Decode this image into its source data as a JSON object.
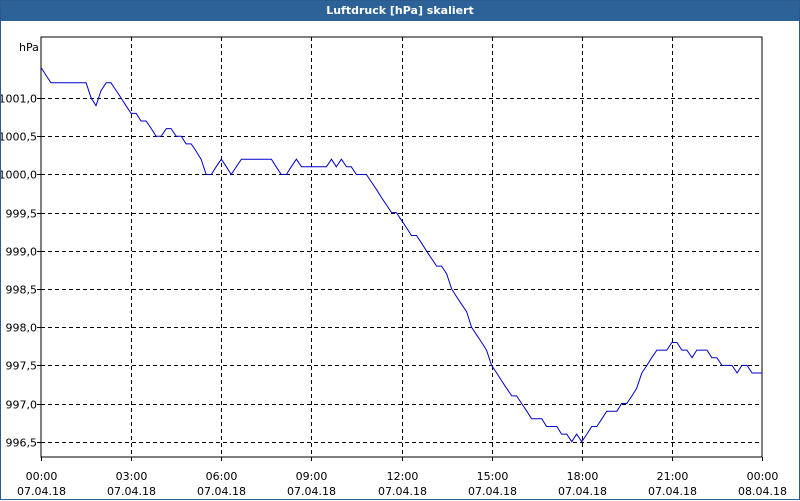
{
  "title": "Luftdruck [hPa] skaliert",
  "chart_data": {
    "type": "line",
    "ylabel": "hPa",
    "ylim": [
      996.3,
      1001.8
    ],
    "xlim_hours": [
      0,
      24
    ],
    "grid": true,
    "line_color": "#0000cc",
    "y_ticks": [
      {
        "value": 1001.0,
        "label": "1001,0"
      },
      {
        "value": 1000.5,
        "label": "1000,5"
      },
      {
        "value": 1000.0,
        "label": "1000,0"
      },
      {
        "value": 999.5,
        "label": "999,5"
      },
      {
        "value": 999.0,
        "label": "999,0"
      },
      {
        "value": 998.5,
        "label": "998,5"
      },
      {
        "value": 998.0,
        "label": "998,0"
      },
      {
        "value": 997.5,
        "label": "997,5"
      },
      {
        "value": 997.0,
        "label": "997,0"
      },
      {
        "value": 996.5,
        "label": "996,5"
      }
    ],
    "x_ticks": [
      {
        "hour": 0,
        "time": "00:00",
        "date": "07.04.18"
      },
      {
        "hour": 3,
        "time": "03:00",
        "date": "07.04.18"
      },
      {
        "hour": 6,
        "time": "06:00",
        "date": "07.04.18"
      },
      {
        "hour": 9,
        "time": "09:00",
        "date": "07.04.18"
      },
      {
        "hour": 12,
        "time": "12:00",
        "date": "07.04.18"
      },
      {
        "hour": 15,
        "time": "15:00",
        "date": "07.04.18"
      },
      {
        "hour": 18,
        "time": "18:00",
        "date": "07.04.18"
      },
      {
        "hour": 21,
        "time": "21:00",
        "date": "07.04.18"
      },
      {
        "hour": 24,
        "time": "00:00",
        "date": "08.04.18"
      }
    ],
    "series": [
      {
        "points": [
          [
            0.0,
            1001.4
          ],
          [
            0.33,
            1001.2
          ],
          [
            1.0,
            1001.2
          ],
          [
            1.5,
            1001.2
          ],
          [
            1.67,
            1001.0
          ],
          [
            1.83,
            1000.9
          ],
          [
            2.0,
            1001.1
          ],
          [
            2.17,
            1001.2
          ],
          [
            2.33,
            1001.2
          ],
          [
            2.5,
            1001.1
          ],
          [
            2.67,
            1001.0
          ],
          [
            2.83,
            1000.9
          ],
          [
            3.0,
            1000.8
          ],
          [
            3.17,
            1000.8
          ],
          [
            3.33,
            1000.7
          ],
          [
            3.5,
            1000.7
          ],
          [
            3.67,
            1000.6
          ],
          [
            3.83,
            1000.5
          ],
          [
            4.0,
            1000.5
          ],
          [
            4.17,
            1000.6
          ],
          [
            4.33,
            1000.6
          ],
          [
            4.5,
            1000.5
          ],
          [
            4.67,
            1000.5
          ],
          [
            4.83,
            1000.4
          ],
          [
            5.0,
            1000.4
          ],
          [
            5.17,
            1000.3
          ],
          [
            5.33,
            1000.2
          ],
          [
            5.5,
            1000.0
          ],
          [
            5.67,
            1000.0
          ],
          [
            5.83,
            1000.1
          ],
          [
            6.0,
            1000.2
          ],
          [
            6.17,
            1000.1
          ],
          [
            6.33,
            1000.0
          ],
          [
            6.5,
            1000.1
          ],
          [
            6.67,
            1000.2
          ],
          [
            6.83,
            1000.2
          ],
          [
            7.0,
            1000.2
          ],
          [
            7.5,
            1000.2
          ],
          [
            7.67,
            1000.2
          ],
          [
            7.83,
            1000.1
          ],
          [
            8.0,
            1000.0
          ],
          [
            8.17,
            1000.0
          ],
          [
            8.33,
            1000.1
          ],
          [
            8.5,
            1000.2
          ],
          [
            8.67,
            1000.1
          ],
          [
            9.0,
            1000.1
          ],
          [
            9.5,
            1000.1
          ],
          [
            9.67,
            1000.2
          ],
          [
            9.83,
            1000.1
          ],
          [
            10.0,
            1000.2
          ],
          [
            10.17,
            1000.1
          ],
          [
            10.33,
            1000.1
          ],
          [
            10.5,
            1000.0
          ],
          [
            10.83,
            1000.0
          ],
          [
            11.0,
            999.9
          ],
          [
            11.17,
            999.8
          ],
          [
            11.33,
            999.7
          ],
          [
            11.5,
            999.6
          ],
          [
            11.67,
            999.5
          ],
          [
            11.83,
            999.5
          ],
          [
            12.0,
            999.4
          ],
          [
            12.17,
            999.3
          ],
          [
            12.33,
            999.2
          ],
          [
            12.5,
            999.2
          ],
          [
            12.67,
            999.1
          ],
          [
            12.83,
            999.0
          ],
          [
            13.0,
            998.9
          ],
          [
            13.17,
            998.8
          ],
          [
            13.33,
            998.8
          ],
          [
            13.5,
            998.7
          ],
          [
            13.67,
            998.5
          ],
          [
            13.83,
            998.4
          ],
          [
            14.0,
            998.3
          ],
          [
            14.17,
            998.2
          ],
          [
            14.33,
            998.0
          ],
          [
            14.5,
            997.9
          ],
          [
            14.67,
            997.8
          ],
          [
            14.83,
            997.7
          ],
          [
            15.0,
            997.5
          ],
          [
            15.17,
            997.4
          ],
          [
            15.33,
            997.3
          ],
          [
            15.5,
            997.2
          ],
          [
            15.67,
            997.1
          ],
          [
            15.83,
            997.1
          ],
          [
            16.0,
            997.0
          ],
          [
            16.17,
            996.9
          ],
          [
            16.33,
            996.8
          ],
          [
            16.67,
            996.8
          ],
          [
            16.83,
            996.7
          ],
          [
            17.17,
            996.7
          ],
          [
            17.33,
            996.6
          ],
          [
            17.5,
            996.6
          ],
          [
            17.67,
            996.5
          ],
          [
            17.83,
            996.6
          ],
          [
            18.0,
            996.5
          ],
          [
            18.17,
            996.6
          ],
          [
            18.33,
            996.7
          ],
          [
            18.5,
            996.7
          ],
          [
            18.67,
            996.8
          ],
          [
            18.83,
            996.9
          ],
          [
            19.17,
            996.9
          ],
          [
            19.33,
            997.0
          ],
          [
            19.5,
            997.0
          ],
          [
            19.67,
            997.1
          ],
          [
            19.83,
            997.2
          ],
          [
            20.0,
            997.4
          ],
          [
            20.17,
            997.5
          ],
          [
            20.33,
            997.6
          ],
          [
            20.5,
            997.7
          ],
          [
            20.83,
            997.7
          ],
          [
            21.0,
            997.8
          ],
          [
            21.17,
            997.8
          ],
          [
            21.33,
            997.7
          ],
          [
            21.5,
            997.7
          ],
          [
            21.67,
            997.6
          ],
          [
            21.83,
            997.7
          ],
          [
            22.17,
            997.7
          ],
          [
            22.33,
            997.6
          ],
          [
            22.5,
            997.6
          ],
          [
            22.67,
            997.5
          ],
          [
            23.0,
            997.5
          ],
          [
            23.17,
            997.4
          ],
          [
            23.33,
            997.5
          ],
          [
            23.5,
            997.5
          ],
          [
            23.67,
            997.4
          ],
          [
            24.0,
            997.4
          ]
        ]
      }
    ]
  }
}
